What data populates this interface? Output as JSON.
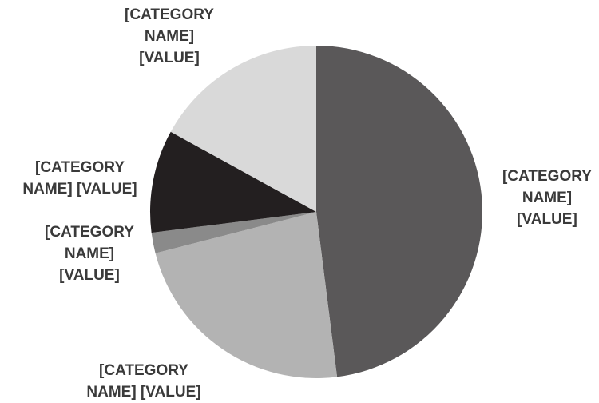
{
  "chart_data": {
    "type": "pie",
    "categories": [
      "[CATEGORY NAME]",
      "[CATEGORY NAME]",
      "[CATEGORY NAME]",
      "[CATEGORY NAME]",
      "[CATEGORY NAME]"
    ],
    "values": [
      48,
      23,
      2,
      10,
      17
    ],
    "value_labels": [
      "[VALUE]",
      "[VALUE]",
      "[VALUE]",
      "[VALUE]",
      "[VALUE]"
    ],
    "colors": [
      "#5a5859",
      "#b3b3b3",
      "#8a8a8a",
      "#231f20",
      "#d9d9d9"
    ]
  }
}
